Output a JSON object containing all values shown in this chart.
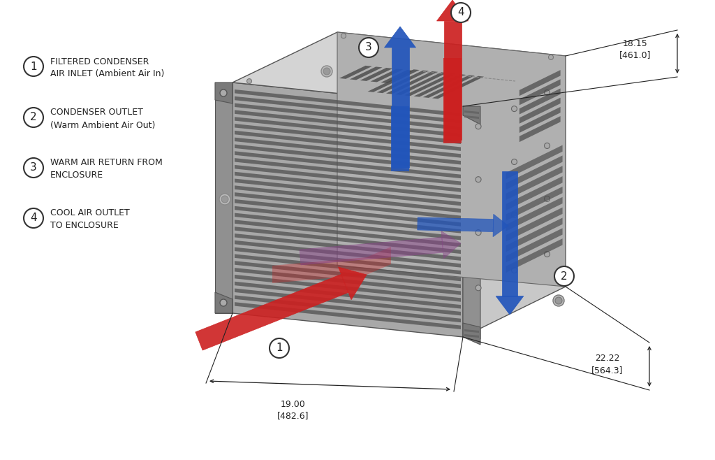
{
  "bg_color": "#ffffff",
  "face_front": "#a8a8a8",
  "face_right": "#c8c8c8",
  "face_top": "#d4d4d4",
  "face_flange": "#888888",
  "face_dark": "#606060",
  "louver_color": "#505050",
  "grille_color": "#484848",
  "red_color": "#cc2020",
  "blue_color": "#2255bb",
  "purple_color": "#884488",
  "dim_color": "#222222",
  "text_color": "#222222",
  "legend": [
    {
      "num": "1",
      "text1": "FILTERED CONDENSER",
      "text2": "AIR INLET (Ambient Air In)"
    },
    {
      "num": "2",
      "text1": "CONDENSER OUTLET",
      "text2": "(Warm Ambient Air Out)"
    },
    {
      "num": "3",
      "text1": "WARM AIR RETURN FROM",
      "text2": "ENCLOSURE"
    },
    {
      "num": "4",
      "text1": "COOL AIR OUTLET",
      "text2": "TO ENCLOSURE"
    }
  ],
  "dim1_label1": "19.00",
  "dim1_label2": "[482.6]",
  "dim2_label1": "22.22",
  "dim2_label2": "[564.3]",
  "dim3_label1": "18.15",
  "dim3_label2": "[461.0]"
}
